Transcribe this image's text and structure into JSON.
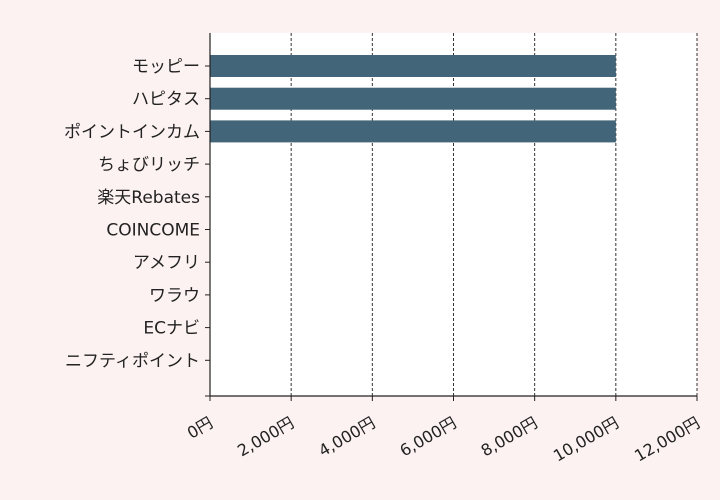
{
  "chart_data": {
    "type": "bar",
    "orientation": "horizontal",
    "categories": [
      "モッピー",
      "ハピタス",
      "ポイントインカム",
      "ちょびリッチ",
      "楽天Rebates",
      "COINCOME",
      "アメフリ",
      "ワラウ",
      "ECナビ",
      "ニフティポイント"
    ],
    "series": [
      {
        "values": [
          10000,
          10000,
          10000,
          0,
          0,
          0,
          0,
          0,
          0,
          0
        ]
      }
    ],
    "xlim": [
      0,
      12000
    ],
    "x_ticks": [
      0,
      2000,
      4000,
      6000,
      8000,
      10000,
      12000
    ],
    "x_tick_labels": [
      "0円",
      "2,000円",
      "4,000円",
      "6,000円",
      "8,000円",
      "10,000円",
      "12,000円"
    ],
    "title": "",
    "xlabel": "",
    "ylabel": "",
    "grid": "vertical dashed",
    "colors": {
      "bar": "#426579",
      "background": "#fdf2f2",
      "plot_background": "#ffffff",
      "axis": "#222222",
      "grid": "#333333"
    }
  }
}
